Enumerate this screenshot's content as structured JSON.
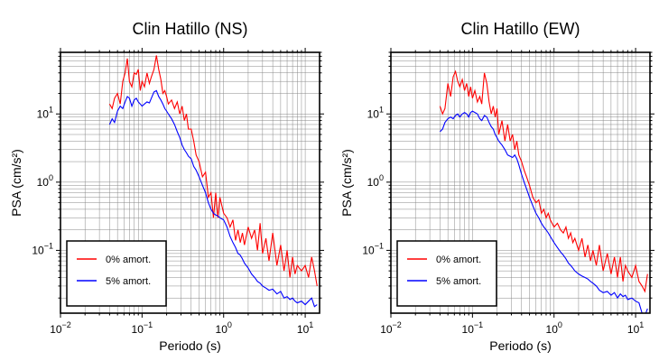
{
  "chart_data": [
    {
      "type": "line",
      "title": "Clin Hatillo (NS)",
      "xlabel": "Periodo (s)",
      "ylabel": "PSA (cm/s²)",
      "xscale": "log",
      "yscale": "log",
      "xlim": [
        0.01,
        15
      ],
      "ylim": [
        0.012,
        80
      ],
      "x_ticks": [
        {
          "v": 0.01,
          "base": "10",
          "exp": "−2"
        },
        {
          "v": 0.1,
          "base": "10",
          "exp": "−1"
        },
        {
          "v": 1,
          "base": "10",
          "exp": "0"
        },
        {
          "v": 10,
          "base": "10",
          "exp": "1"
        }
      ],
      "y_ticks": [
        {
          "v": 0.1,
          "base": "10",
          "exp": "−1"
        },
        {
          "v": 1,
          "base": "10",
          "exp": "0"
        },
        {
          "v": 10,
          "base": "10",
          "exp": "1"
        }
      ],
      "grid": true,
      "legend_position": "bottom-left",
      "series": [
        {
          "name": "0% amort.",
          "color": "#ff0000",
          "x": [
            0.04,
            0.043,
            0.046,
            0.05,
            0.054,
            0.058,
            0.062,
            0.066,
            0.07,
            0.075,
            0.08,
            0.085,
            0.09,
            0.095,
            0.1,
            0.107,
            0.115,
            0.123,
            0.13,
            0.14,
            0.15,
            0.16,
            0.17,
            0.18,
            0.19,
            0.2,
            0.21,
            0.23,
            0.25,
            0.27,
            0.29,
            0.31,
            0.33,
            0.35,
            0.37,
            0.4,
            0.43,
            0.46,
            0.5,
            0.55,
            0.6,
            0.65,
            0.7,
            0.75,
            0.8,
            0.85,
            0.9,
            1.0,
            1.1,
            1.2,
            1.3,
            1.4,
            1.5,
            1.6,
            1.7,
            1.8,
            2.0,
            2.2,
            2.4,
            2.6,
            2.8,
            3.0,
            3.3,
            3.6,
            4.0,
            4.5,
            5.0,
            5.5,
            6.0,
            6.5,
            7.0,
            7.5,
            8.0,
            9.0,
            10,
            11,
            12,
            13,
            14
          ],
          "y": [
            14,
            12,
            17,
            20,
            14,
            30,
            40,
            65,
            30,
            25,
            40,
            38,
            45,
            22,
            30,
            25,
            40,
            28,
            35,
            45,
            72,
            45,
            32,
            20,
            22,
            18,
            14,
            16,
            12,
            15,
            10,
            13,
            8,
            10,
            6,
            6,
            4,
            2.5,
            2,
            1.2,
            1.4,
            0.6,
            0.7,
            0.3,
            0.7,
            0.3,
            0.6,
            0.35,
            0.3,
            0.22,
            0.28,
            0.14,
            0.2,
            0.13,
            0.18,
            0.12,
            0.22,
            0.15,
            0.2,
            0.1,
            0.25,
            0.09,
            0.15,
            0.07,
            0.18,
            0.06,
            0.12,
            0.05,
            0.1,
            0.04,
            0.08,
            0.045,
            0.06,
            0.05,
            0.06,
            0.04,
            0.08,
            0.05,
            0.03
          ]
        },
        {
          "name": "5% amort.",
          "color": "#0000ff",
          "x": [
            0.04,
            0.043,
            0.046,
            0.05,
            0.054,
            0.058,
            0.062,
            0.066,
            0.07,
            0.075,
            0.08,
            0.085,
            0.09,
            0.095,
            0.1,
            0.107,
            0.115,
            0.123,
            0.13,
            0.14,
            0.15,
            0.16,
            0.17,
            0.18,
            0.19,
            0.2,
            0.21,
            0.23,
            0.25,
            0.27,
            0.29,
            0.31,
            0.33,
            0.35,
            0.37,
            0.4,
            0.43,
            0.46,
            0.5,
            0.55,
            0.6,
            0.65,
            0.7,
            0.75,
            0.8,
            0.85,
            0.9,
            1.0,
            1.1,
            1.2,
            1.3,
            1.4,
            1.5,
            1.6,
            1.7,
            1.8,
            2.0,
            2.2,
            2.4,
            2.6,
            2.8,
            3.0,
            3.3,
            3.6,
            4.0,
            4.5,
            5.0,
            5.5,
            6.0,
            6.5,
            7.0,
            7.5,
            8.0,
            9.0,
            10,
            11,
            12,
            13,
            14
          ],
          "y": [
            7,
            8.5,
            7.5,
            11,
            13,
            12,
            15,
            18,
            17,
            13,
            16,
            17,
            15,
            14,
            13,
            14,
            15,
            14.5,
            17,
            21,
            22,
            18,
            16,
            14,
            12,
            11,
            10,
            8.5,
            7,
            5.5,
            4.5,
            3.5,
            3,
            2.7,
            2.4,
            2.2,
            1.7,
            1.5,
            1.2,
            0.9,
            0.7,
            0.5,
            0.4,
            0.35,
            0.33,
            0.32,
            0.3,
            0.28,
            0.22,
            0.16,
            0.13,
            0.11,
            0.09,
            0.085,
            0.075,
            0.065,
            0.055,
            0.045,
            0.04,
            0.035,
            0.033,
            0.03,
            0.028,
            0.026,
            0.027,
            0.023,
            0.025,
            0.02,
            0.021,
            0.019,
            0.02,
            0.018,
            0.017,
            0.018,
            0.016,
            0.018,
            0.02,
            0.015,
            0.016
          ]
        }
      ]
    },
    {
      "type": "line",
      "title": "Clin Hatillo (EW)",
      "xlabel": "Periodo (s)",
      "ylabel": "PSA (cm/s²)",
      "xscale": "log",
      "yscale": "log",
      "xlim": [
        0.01,
        15
      ],
      "ylim": [
        0.012,
        80
      ],
      "x_ticks": [
        {
          "v": 0.01,
          "base": "10",
          "exp": "−2"
        },
        {
          "v": 0.1,
          "base": "10",
          "exp": "−1"
        },
        {
          "v": 1,
          "base": "10",
          "exp": "0"
        },
        {
          "v": 10,
          "base": "10",
          "exp": "1"
        }
      ],
      "y_ticks": [
        {
          "v": 0.1,
          "base": "10",
          "exp": "−1"
        },
        {
          "v": 1,
          "base": "10",
          "exp": "0"
        },
        {
          "v": 10,
          "base": "10",
          "exp": "1"
        }
      ],
      "grid": true,
      "legend_position": "bottom-left",
      "series": [
        {
          "name": "0% amort.",
          "color": "#ff0000",
          "x": [
            0.04,
            0.043,
            0.046,
            0.05,
            0.054,
            0.058,
            0.062,
            0.066,
            0.07,
            0.075,
            0.08,
            0.085,
            0.09,
            0.095,
            0.1,
            0.107,
            0.115,
            0.123,
            0.13,
            0.14,
            0.15,
            0.16,
            0.17,
            0.18,
            0.19,
            0.2,
            0.21,
            0.23,
            0.25,
            0.27,
            0.29,
            0.31,
            0.33,
            0.35,
            0.37,
            0.4,
            0.43,
            0.46,
            0.5,
            0.55,
            0.6,
            0.65,
            0.7,
            0.75,
            0.8,
            0.85,
            0.9,
            1.0,
            1.1,
            1.2,
            1.3,
            1.4,
            1.5,
            1.6,
            1.7,
            1.8,
            2.0,
            2.2,
            2.4,
            2.6,
            2.8,
            3.0,
            3.3,
            3.6,
            4.0,
            4.5,
            5.0,
            5.5,
            6.0,
            6.5,
            7.0,
            7.5,
            8.0,
            9.0,
            10,
            11,
            12,
            13,
            14
          ],
          "y": [
            13,
            10,
            12,
            28,
            18,
            35,
            42,
            30,
            25,
            32,
            22,
            28,
            18,
            25,
            17,
            22,
            15,
            18,
            14,
            40,
            28,
            15,
            10,
            13,
            9,
            12,
            5,
            8,
            4,
            7,
            4,
            5,
            3,
            4,
            2.5,
            2,
            1.5,
            1.2,
            0.9,
            0.6,
            0.5,
            0.55,
            0.35,
            0.4,
            0.3,
            0.35,
            0.28,
            0.22,
            0.25,
            0.2,
            0.18,
            0.22,
            0.15,
            0.18,
            0.13,
            0.15,
            0.1,
            0.15,
            0.08,
            0.12,
            0.07,
            0.1,
            0.06,
            0.12,
            0.05,
            0.09,
            0.045,
            0.08,
            0.04,
            0.08,
            0.035,
            0.06,
            0.05,
            0.04,
            0.06,
            0.035,
            0.03,
            0.025,
            0.045
          ]
        },
        {
          "name": "5% amort.",
          "color": "#0000ff",
          "x": [
            0.04,
            0.043,
            0.046,
            0.05,
            0.054,
            0.058,
            0.062,
            0.066,
            0.07,
            0.075,
            0.08,
            0.085,
            0.09,
            0.095,
            0.1,
            0.107,
            0.115,
            0.123,
            0.13,
            0.14,
            0.15,
            0.16,
            0.17,
            0.18,
            0.19,
            0.2,
            0.21,
            0.23,
            0.25,
            0.27,
            0.29,
            0.31,
            0.33,
            0.35,
            0.37,
            0.4,
            0.43,
            0.46,
            0.5,
            0.55,
            0.6,
            0.65,
            0.7,
            0.75,
            0.8,
            0.85,
            0.9,
            1.0,
            1.1,
            1.2,
            1.3,
            1.4,
            1.5,
            1.6,
            1.7,
            1.8,
            2.0,
            2.2,
            2.4,
            2.6,
            2.8,
            3.0,
            3.3,
            3.6,
            4.0,
            4.5,
            5.0,
            5.5,
            6.0,
            6.5,
            7.0,
            7.5,
            8.0,
            9.0,
            10,
            11,
            12,
            13,
            14
          ],
          "y": [
            5.5,
            6,
            7.5,
            8.5,
            9,
            8.5,
            9.5,
            10,
            9,
            10,
            10.5,
            10,
            9,
            10.5,
            11,
            10.5,
            10,
            8.5,
            8,
            9.5,
            9,
            7.5,
            6.5,
            6,
            5,
            4.5,
            4,
            3.5,
            3,
            2.5,
            2.4,
            2.3,
            2.5,
            2.2,
            1.8,
            1.3,
            1,
            0.8,
            0.6,
            0.45,
            0.35,
            0.3,
            0.25,
            0.22,
            0.2,
            0.18,
            0.16,
            0.13,
            0.11,
            0.095,
            0.085,
            0.075,
            0.065,
            0.06,
            0.055,
            0.05,
            0.045,
            0.042,
            0.04,
            0.038,
            0.035,
            0.033,
            0.03,
            0.026,
            0.024,
            0.025,
            0.022,
            0.024,
            0.02,
            0.023,
            0.021,
            0.022,
            0.019,
            0.02,
            0.018,
            0.017,
            0.012,
            0.011,
            0.014
          ]
        }
      ]
    }
  ]
}
